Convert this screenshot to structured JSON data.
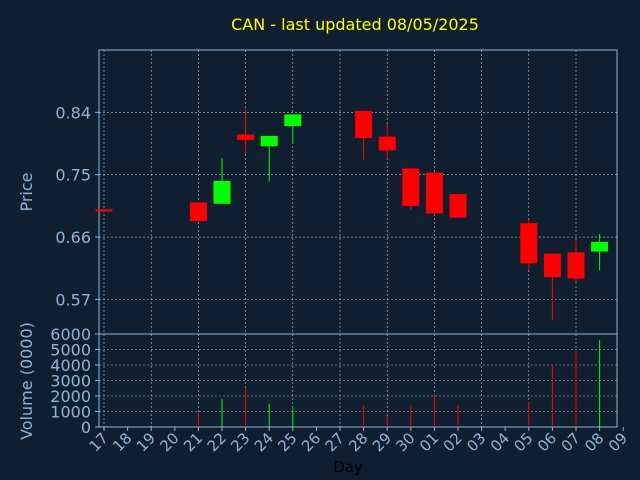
{
  "chart_data": [
    {
      "type": "candlestick",
      "title": "CAN - last updated 08/05/2025",
      "ylabel": "Price",
      "xlabel": "Day",
      "yticks": [
        "0.84",
        "0.75",
        "0.66",
        "0.57"
      ],
      "ylim": [
        0.52,
        0.93
      ],
      "grid": true,
      "colors": {
        "up": "#00ff00",
        "down": "#ff0000",
        "title": "#ffff00",
        "axis_text": "#8fb4d8",
        "background": "#0f1f30",
        "grid": "#ffffff"
      },
      "x_tick_labels": [
        "17",
        "18",
        "19",
        "20",
        "21",
        "22",
        "23",
        "24",
        "25",
        "26",
        "27",
        "28",
        "29",
        "30",
        "01",
        "02",
        "03",
        "04",
        "05",
        "06",
        "07",
        "08",
        "09"
      ],
      "candles": [
        {
          "x": "17",
          "open": 0.7,
          "close": 0.697,
          "high": 0.7,
          "low": 0.697
        },
        {
          "x": "21",
          "open": 0.71,
          "close": 0.683,
          "high": 0.71,
          "low": 0.683
        },
        {
          "x": "22",
          "open": 0.708,
          "close": 0.741,
          "high": 0.774,
          "low": 0.708
        },
        {
          "x": "23",
          "open": 0.808,
          "close": 0.8,
          "high": 0.845,
          "low": 0.78
        },
        {
          "x": "24",
          "open": 0.791,
          "close": 0.806,
          "high": 0.806,
          "low": 0.74
        },
        {
          "x": "25",
          "open": 0.82,
          "close": 0.837,
          "high": 0.837,
          "low": 0.796
        },
        {
          "x": "28",
          "open": 0.842,
          "close": 0.803,
          "high": 0.842,
          "low": 0.771
        },
        {
          "x": "29",
          "open": 0.805,
          "close": 0.785,
          "high": 0.823,
          "low": 0.773
        },
        {
          "x": "30",
          "open": 0.759,
          "close": 0.705,
          "high": 0.759,
          "low": 0.699
        },
        {
          "x": "01",
          "open": 0.753,
          "close": 0.694,
          "high": 0.753,
          "low": 0.692
        },
        {
          "x": "02",
          "open": 0.722,
          "close": 0.688,
          "high": 0.722,
          "low": 0.688
        },
        {
          "x": "05",
          "open": 0.68,
          "close": 0.622,
          "high": 0.685,
          "low": 0.612
        },
        {
          "x": "06",
          "open": 0.636,
          "close": 0.602,
          "high": 0.636,
          "low": 0.54
        },
        {
          "x": "07",
          "open": 0.638,
          "close": 0.6,
          "high": 0.655,
          "low": 0.594
        },
        {
          "x": "08",
          "open": 0.639,
          "close": 0.653,
          "high": 0.664,
          "low": 0.612
        }
      ]
    },
    {
      "type": "bar",
      "ylabel": "Volume (0000)",
      "yticks": [
        "6000",
        "5000",
        "4000",
        "3000",
        "2000",
        "1000",
        "0"
      ],
      "ylim": [
        0,
        6000
      ],
      "grid": true,
      "bars": [
        {
          "x": "21",
          "value": 900,
          "dir": "down"
        },
        {
          "x": "22",
          "value": 1800,
          "dir": "up"
        },
        {
          "x": "23",
          "value": 2500,
          "dir": "down"
        },
        {
          "x": "24",
          "value": 1500,
          "dir": "up"
        },
        {
          "x": "25",
          "value": 1200,
          "dir": "up"
        },
        {
          "x": "28",
          "value": 1400,
          "dir": "down"
        },
        {
          "x": "29",
          "value": 700,
          "dir": "down"
        },
        {
          "x": "30",
          "value": 1400,
          "dir": "down"
        },
        {
          "x": "01",
          "value": 2200,
          "dir": "down"
        },
        {
          "x": "02",
          "value": 1400,
          "dir": "down"
        },
        {
          "x": "05",
          "value": 1600,
          "dir": "down"
        },
        {
          "x": "06",
          "value": 4000,
          "dir": "down"
        },
        {
          "x": "07",
          "value": 5000,
          "dir": "down"
        },
        {
          "x": "08",
          "value": 5600,
          "dir": "up"
        }
      ]
    }
  ]
}
